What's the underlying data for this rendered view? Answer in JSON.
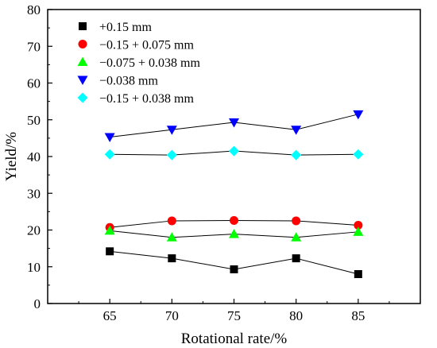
{
  "chart_data": {
    "type": "line",
    "title": "",
    "xlabel": "Rotational rate/%",
    "ylabel": "Yield/%",
    "x": [
      65,
      70,
      75,
      80,
      85
    ],
    "xlim": [
      60,
      90
    ],
    "ylim": [
      0,
      80
    ],
    "xticks": [
      "65",
      "70",
      "75",
      "80",
      "85"
    ],
    "yticks": [
      "0",
      "10",
      "20",
      "30",
      "40",
      "50",
      "60",
      "70",
      "80"
    ],
    "grid": false,
    "legend_position": "top-left",
    "series": [
      {
        "name": "+0.15 mm",
        "marker": "square",
        "color": "#000000",
        "values": [
          14.2,
          12.3,
          9.3,
          12.3,
          8.0
        ]
      },
      {
        "name": "−0.15 + 0.075 mm",
        "marker": "circle",
        "color": "#ff0000",
        "values": [
          20.7,
          22.5,
          22.6,
          22.5,
          21.3
        ]
      },
      {
        "name": "−0.075 + 0.038 mm",
        "marker": "triangle-up",
        "color": "#00ff00",
        "values": [
          19.8,
          18.0,
          18.9,
          18.0,
          19.5
        ]
      },
      {
        "name": "−0.038 mm",
        "marker": "triangle-down",
        "color": "#0000ff",
        "values": [
          45.3,
          47.3,
          49.3,
          47.3,
          51.5
        ]
      },
      {
        "name": "−0.15 + 0.038 mm",
        "marker": "diamond",
        "color": "#00ffff",
        "values": [
          40.6,
          40.4,
          41.5,
          40.4,
          40.6
        ]
      }
    ]
  }
}
